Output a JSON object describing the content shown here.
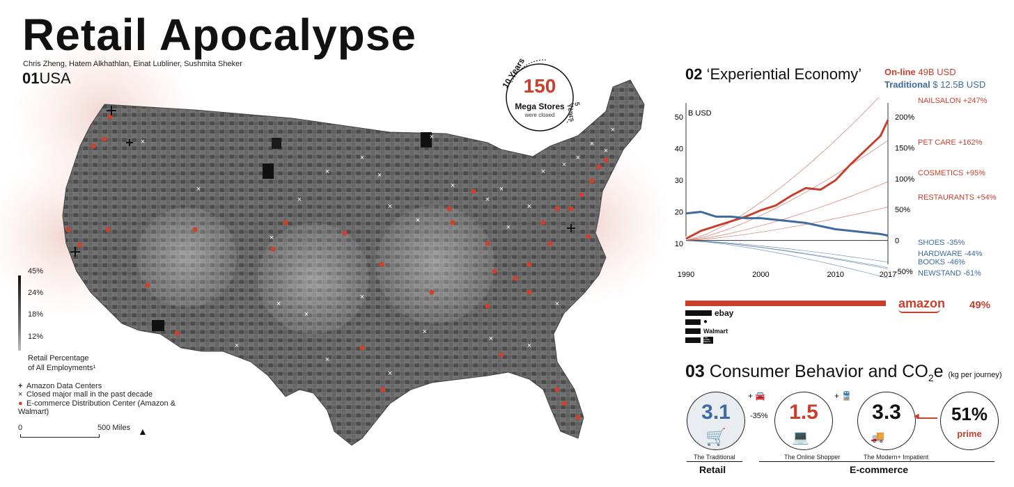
{
  "title": "Retail Apocalypse",
  "authors": "Chris Zheng, Hatem Alkhathlan, Einat Lubliner, Sushmita Sheker",
  "section1": {
    "num": "01",
    "label": "USA"
  },
  "badge": {
    "arc_top": "10 Years",
    "arc_side": "5 Years",
    "number": "150",
    "line1": "Mega Stores",
    "line2": "were closed"
  },
  "map_legend": {
    "scale_ticks": [
      "45%",
      "24%",
      "18%",
      "12%"
    ],
    "scale_title_1": "Retail Percentage",
    "scale_title_2": "of All Employments¹",
    "items": [
      {
        "icon": "plus-icon",
        "label": "Amazon Data Centers"
      },
      {
        "icon": "x-icon",
        "label": "Closed major mall in the past decade"
      },
      {
        "icon": "dot-icon",
        "label": "E-commerce Distribution Center (Amazon & Walmart)"
      }
    ],
    "scale_start": "0",
    "scale_end": "500 Miles",
    "colors": {
      "accent": "#d0402b",
      "map_gray": "#5d5d5d"
    }
  },
  "section2": {
    "num": "02",
    "label": "‘Experiential Economy’"
  },
  "online": {
    "label": "On-line",
    "value": "49B USD",
    "color": "#c8402d"
  },
  "traditional": {
    "label": "Traditional",
    "value": "$ 12.5B USD",
    "color": "#3f6a9e"
  },
  "chart_data": {
    "type": "line",
    "y_left_label": "B USD",
    "x_ticks": [
      "1990",
      "2000",
      "2010",
      "2017"
    ],
    "y_left_ticks": [
      "50",
      "40",
      "30",
      "20",
      "10"
    ],
    "y_right_ticks": [
      "200%",
      "150%",
      "100%",
      "50%",
      "0",
      "-50%"
    ],
    "xlim": [
      1990,
      2017
    ],
    "ylim_left": [
      10,
      50
    ],
    "ylim_right": [
      -50,
      200
    ],
    "series": [
      {
        "name": "On-line",
        "axis": "left",
        "color": "#c8402d",
        "x": [
          1990,
          1992,
          1994,
          1996,
          1998,
          2000,
          2002,
          2004,
          2006,
          2008,
          2010,
          2012,
          2014,
          2016,
          2017
        ],
        "y": [
          11.5,
          14,
          15.5,
          17,
          18.5,
          20.5,
          22,
          25,
          27.5,
          27,
          30,
          35,
          39.5,
          44,
          49
        ]
      },
      {
        "name": "Traditional",
        "axis": "left",
        "color": "#3f6a9e",
        "x": [
          1990,
          1992,
          1994,
          1996,
          1998,
          2000,
          2002,
          2004,
          2006,
          2008,
          2010,
          2012,
          2014,
          2016,
          2017
        ],
        "y": [
          19.5,
          20,
          18.5,
          18.5,
          18,
          18,
          17.5,
          17,
          16.5,
          15.5,
          14.5,
          14,
          13.5,
          13,
          12.5
        ]
      }
    ],
    "category_labels": [
      {
        "label": "NAILSALON +247%",
        "color": "#c8402d",
        "end": 247
      },
      {
        "label": "PET CARE +162%",
        "color": "#c8402d",
        "end": 162
      },
      {
        "label": "COSMETICS +95%",
        "color": "#c8402d",
        "end": 95
      },
      {
        "label": "RESTAURANTS +54%",
        "color": "#c8402d",
        "end": 54
      },
      {
        "label": "SHOES -35%",
        "color": "#3f6a9e",
        "end": -35
      },
      {
        "label": "HARDWARE -44%",
        "color": "#3f6a9e",
        "end": -44
      },
      {
        "label": "BOOKS -46%",
        "color": "#3f6a9e",
        "end": -46
      },
      {
        "label": "NEWSTAND -61%",
        "color": "#3f6a9e",
        "end": -61
      }
    ]
  },
  "market_share": {
    "leader": "amazon",
    "leader_pct": "49%",
    "others": [
      "ebay",
      "",
      "Walmart",
      "THE HOME DEPOT"
    ]
  },
  "section3": {
    "num": "03",
    "label": "Consumer Behavior and CO",
    "sub": "2",
    "label2": "e",
    "unit": "(kg per journey)"
  },
  "consumer": {
    "retail_value": "3.1",
    "retail_caption": "The Traditional",
    "car_note": "+",
    "pct_note": "-35%",
    "online_value": "1.5",
    "online_caption": "The Online Shopper",
    "train_note": "+",
    "modern_value": "3.3",
    "modern_caption": "The Modern+ Impatient",
    "prime_value": "51%",
    "prime_caption": "prime",
    "group_retail": "Retail",
    "group_ecom": "E-commerce"
  }
}
